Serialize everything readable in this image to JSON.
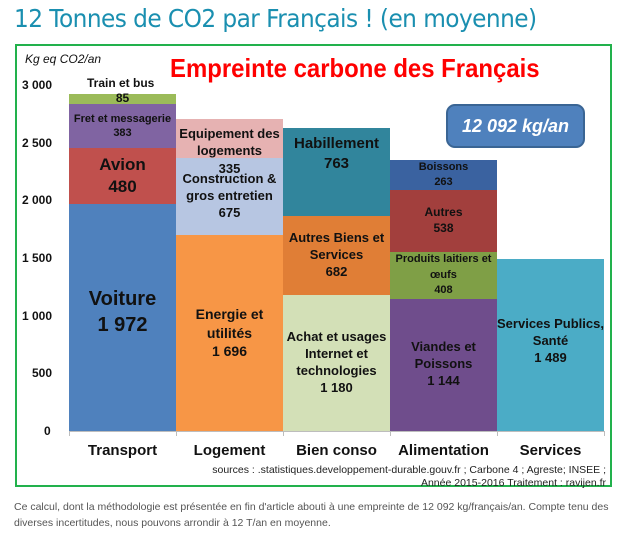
{
  "page": {
    "title": "12 Tonnes de CO2 par Français ! (en moyenne)",
    "caption": "Ce calcul, dont la méthodologie est présentée en fin d'article abouti à une empreinte de 12 092 kg/français/an. Compte tenu des diverses incertitudes, nous pouvons arrondir à 12 T/an en moyenne."
  },
  "colors": {
    "title": "#1a8fb0",
    "frame_border": "#22b14c",
    "chart_title": "#ff0000",
    "total_box": "#4f81bd"
  },
  "chart_data": {
    "type": "bar",
    "subtype": "stacked",
    "title": "Empreinte carbone des Français",
    "ylabel": "Kg eq CO2/an",
    "xlabel": "",
    "ylim": [
      0,
      3000
    ],
    "yticks": [
      "0",
      "500",
      "1 000",
      "1 500",
      "2 000",
      "2 500",
      "3 000"
    ],
    "ytick_values": [
      0,
      500,
      1000,
      1500,
      2000,
      2500,
      3000
    ],
    "grid": false,
    "legend": "none (labels inside segments)",
    "total_annotation": "12 092 kg/an",
    "total": 12092,
    "categories": [
      "Transport",
      "Logement",
      "Bien conso",
      "Alimentation",
      "Services"
    ],
    "stacks": [
      {
        "category": "Transport",
        "total": 2920,
        "segments": [
          {
            "label": "Voiture",
            "value": 1972,
            "display": "1 972",
            "color": "#4f81bd"
          },
          {
            "label": "Avion",
            "value": 480,
            "display": "480",
            "color": "#c0504d"
          },
          {
            "label": "Fret et messagerie",
            "value": 383,
            "display": "383",
            "color": "#8064a2"
          },
          {
            "label": "Train et bus",
            "value": 85,
            "display": "85",
            "color": "#9bbb59"
          }
        ]
      },
      {
        "category": "Logement",
        "total": 2706,
        "segments": [
          {
            "label": "Energie et\nutilités",
            "value": 1696,
            "display": "1 696",
            "color": "#f79646"
          },
          {
            "label": "Construction &\ngros entretien",
            "value": 675,
            "display": "675",
            "color": "#b7c6e2"
          },
          {
            "label": "Equipement des\nlogements",
            "value": 335,
            "display": "335",
            "color": "#e6b2b2"
          }
        ]
      },
      {
        "category": "Bien conso",
        "total": 2625,
        "segments": [
          {
            "label": "Achat et usages\nInternet et\ntechnologies",
            "value": 1180,
            "display": "1 180",
            "color": "#d3e0b7"
          },
          {
            "label": "Autres Biens et\nServices",
            "value": 682,
            "display": "682",
            "color": "#e07e36"
          },
          {
            "label": "Habillement",
            "value": 763,
            "display": "763",
            "color": "#31859c"
          }
        ]
      },
      {
        "category": "Alimentation",
        "total": 2353,
        "segments": [
          {
            "label": "Viandes et\nPoissons",
            "value": 1144,
            "display": "1 144",
            "color": "#6f4d8c"
          },
          {
            "label": "Produits laitiers et\nœufs",
            "value": 408,
            "display": "408",
            "color": "#7f9f46"
          },
          {
            "label": "Autres",
            "value": 538,
            "display": "538",
            "color": "#a23f3d"
          },
          {
            "label": "Boissons",
            "value": 263,
            "display": "263",
            "color": "#3a62a0"
          }
        ]
      },
      {
        "category": "Services",
        "total": 1489,
        "segments": [
          {
            "label": "Services Publics,\nSanté",
            "value": 1489,
            "display": "1 489",
            "color": "#4bacc6"
          }
        ]
      }
    ],
    "annotations": [
      "sources : .statistiques.developpement-durable.gouv.fr ; Carbone 4 ; Agreste;  INSEE ;",
      "Année 2015-2016     Traitement : ravijen.fr"
    ]
  },
  "sources": {
    "line1": "sources : .statistiques.developpement-durable.gouv.fr ; Carbone 4 ; Agreste;  INSEE ;",
    "line2": "Année 2015-2016     Traitement : ravijen.fr"
  }
}
